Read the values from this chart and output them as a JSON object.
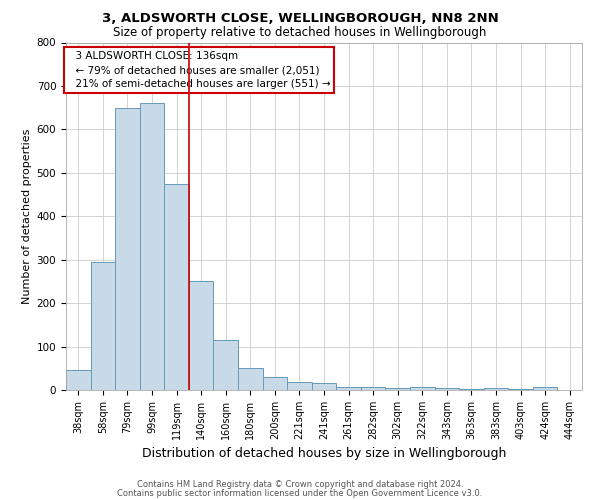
{
  "title1": "3, ALDSWORTH CLOSE, WELLINGBOROUGH, NN8 2NN",
  "title2": "Size of property relative to detached houses in Wellingborough",
  "xlabel": "Distribution of detached houses by size in Wellingborough",
  "ylabel": "Number of detached properties",
  "categories": [
    "38sqm",
    "58sqm",
    "79sqm",
    "99sqm",
    "119sqm",
    "140sqm",
    "160sqm",
    "180sqm",
    "200sqm",
    "221sqm",
    "241sqm",
    "261sqm",
    "282sqm",
    "302sqm",
    "322sqm",
    "343sqm",
    "363sqm",
    "383sqm",
    "403sqm",
    "424sqm",
    "444sqm"
  ],
  "values": [
    47,
    295,
    650,
    660,
    475,
    250,
    115,
    50,
    30,
    18,
    15,
    8,
    7,
    5,
    8,
    5,
    3,
    5,
    2,
    8,
    0
  ],
  "bar_color": "#c8d9e8",
  "bar_edge_color": "#6699bb",
  "vline_x_index": 4.5,
  "vline_color": "#cc0000",
  "annotation_text": "  3 ALDSWORTH CLOSE: 136sqm\n  ← 79% of detached houses are smaller (2,051)\n  21% of semi-detached houses are larger (551) →",
  "annotation_box_color": "#ffffff",
  "annotation_box_edge": "#cc0000",
  "ylim": [
    0,
    800
  ],
  "yticks": [
    0,
    100,
    200,
    300,
    400,
    500,
    600,
    700,
    800
  ],
  "footnote1": "Contains HM Land Registry data © Crown copyright and database right 2024.",
  "footnote2": "Contains public sector information licensed under the Open Government Licence v3.0.",
  "bg_color": "#ffffff",
  "grid_color": "#cccccc",
  "title1_fontsize": 9.5,
  "title2_fontsize": 8.5,
  "xlabel_fontsize": 9,
  "ylabel_fontsize": 8,
  "tick_fontsize": 7,
  "annotation_fontsize": 7.5,
  "footnote_fontsize": 6
}
